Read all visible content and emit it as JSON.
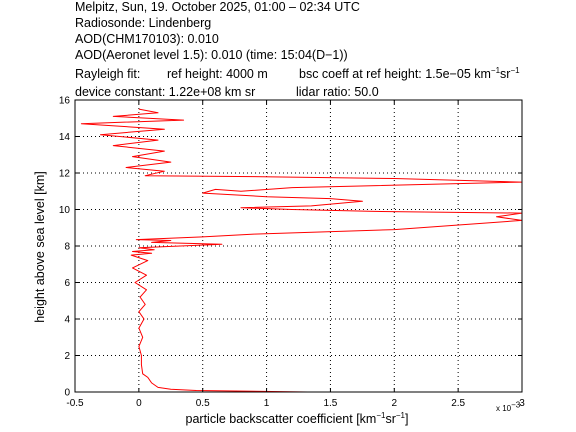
{
  "header": {
    "line1": "Melpitz, Sun, 19. October 2025, 01:00 – 02:34 UTC",
    "line2": "Radiosonde: Lindenberg",
    "line3": "AOD(CHM170103): 0.010",
    "line4": "AOD(Aeronet level 1.5): 0.010   (time: 15:04(D−1))",
    "rayleigh_label": "Rayleigh fit:",
    "ref_height": "ref height: 4000 m",
    "bsc_coeff_prefix": "bsc coeff at ref height: 1.5e−05 km",
    "bsc_sup1": "−1",
    "bsc_mid": "sr",
    "bsc_sup2": "−1",
    "device_constant": "device constant: 1.22e+08 km sr",
    "lidar_ratio": "lidar ratio: 50.0"
  },
  "axes": {
    "ylabel": "height above sea level [km]",
    "xlabel_prefix": "particle backscatter coefficient [km",
    "xlabel_sup1": "−1",
    "xlabel_mid": "sr",
    "xlabel_sup2": "−1",
    "xlabel_suffix": "]",
    "x_multiplier": "x 10",
    "x_multiplier_exp": "−3"
  },
  "colors": {
    "series": "#ff0000",
    "axis": "#000000",
    "grid": "#000000"
  },
  "chart_data": {
    "type": "line",
    "xlim": [
      -0.5,
      3
    ],
    "ylim": [
      0,
      16
    ],
    "x_scale_note": "x 10^-3",
    "x_ticks": [
      -0.5,
      0,
      0.5,
      1,
      1.5,
      2,
      2.5,
      3
    ],
    "x_tick_labels": [
      "-0.5",
      "0",
      "0.5",
      "1",
      "1.5",
      "2",
      "2.5",
      "3"
    ],
    "y_ticks": [
      0,
      2,
      4,
      6,
      8,
      10,
      12,
      14,
      16
    ],
    "y_tick_labels": [
      "0",
      "2",
      "4",
      "6",
      "8",
      "10",
      "12",
      "14",
      "16"
    ],
    "grid": "dotted",
    "series": [
      {
        "color": "#ff0000",
        "points": [
          [
            1.32,
            0.0
          ],
          [
            0.45,
            0.08
          ],
          [
            0.25,
            0.15
          ],
          [
            0.15,
            0.25
          ],
          [
            0.1,
            0.5
          ],
          [
            0.07,
            0.8
          ],
          [
            0.03,
            1.0
          ],
          [
            0.02,
            1.5
          ],
          [
            0.02,
            2.0
          ],
          [
            0.0,
            2.5
          ],
          [
            0.03,
            3.0
          ],
          [
            0.0,
            3.5
          ],
          [
            0.04,
            4.0
          ],
          [
            0.0,
            4.4
          ],
          [
            0.05,
            4.8
          ],
          [
            0.01,
            5.2
          ],
          [
            0.06,
            5.6
          ],
          [
            -0.03,
            6.0
          ],
          [
            0.06,
            6.4
          ],
          [
            -0.05,
            6.8
          ],
          [
            0.07,
            7.2
          ],
          [
            -0.06,
            7.5
          ],
          [
            0.1,
            7.6
          ],
          [
            -0.05,
            7.7
          ],
          [
            0.12,
            7.8
          ],
          [
            0.0,
            7.9
          ],
          [
            0.65,
            8.1
          ],
          [
            0.1,
            8.2
          ],
          [
            0.25,
            8.3
          ],
          [
            -0.02,
            8.35
          ],
          [
            0.5,
            8.5
          ],
          [
            0.9,
            8.65
          ],
          [
            2.0,
            8.9
          ],
          [
            3.0,
            9.4
          ],
          [
            2.8,
            9.6
          ],
          [
            3.0,
            9.8
          ],
          [
            1.8,
            9.9
          ],
          [
            1.2,
            10.0
          ],
          [
            0.8,
            10.1
          ],
          [
            1.35,
            10.2
          ],
          [
            1.75,
            10.45
          ],
          [
            1.5,
            10.6
          ],
          [
            1.0,
            10.7
          ],
          [
            0.5,
            10.9
          ],
          [
            0.6,
            11.1
          ],
          [
            0.8,
            11.0
          ],
          [
            1.2,
            11.2
          ],
          [
            3.0,
            11.5
          ],
          [
            2.0,
            11.7
          ],
          [
            0.9,
            11.8
          ],
          [
            0.05,
            11.85
          ],
          [
            0.2,
            12.1
          ],
          [
            -0.1,
            12.3
          ],
          [
            0.25,
            12.6
          ],
          [
            -0.05,
            12.9
          ],
          [
            0.2,
            13.2
          ],
          [
            -0.2,
            13.5
          ],
          [
            0.15,
            13.8
          ],
          [
            -0.3,
            14.1
          ],
          [
            0.2,
            14.4
          ],
          [
            -0.45,
            14.7
          ],
          [
            0.35,
            14.9
          ],
          [
            -0.2,
            15.1
          ],
          [
            0.15,
            15.3
          ],
          [
            0.0,
            15.5
          ]
        ]
      }
    ]
  }
}
